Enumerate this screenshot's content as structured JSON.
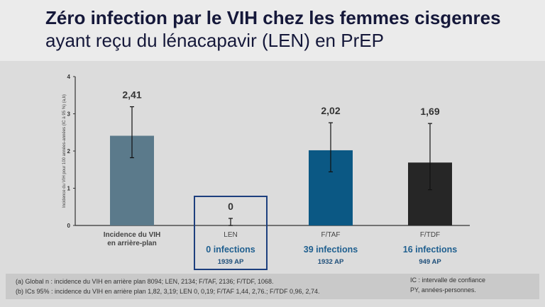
{
  "header": {
    "title_line1": "Zéro infection par le VIH chez les femmes cisgenres",
    "title_line2": "ayant reçu du lénacapavir (LEN) en PrEP"
  },
  "chart_data": {
    "type": "bar",
    "ylabel": "Incidence du VIH pour 100 années-années (IC à 95 %) (a,b)",
    "ylim": [
      0,
      4
    ],
    "yticks": [
      "0",
      "1",
      "2",
      "3",
      "4"
    ],
    "categories": [
      "Incidence du VIH\nen arrière-plan",
      "LEN",
      "F/TAF",
      "F/TDF"
    ],
    "values": [
      2.41,
      0,
      2.02,
      1.69
    ],
    "value_labels": [
      "2,41",
      "0",
      "2,02",
      "1,69"
    ],
    "ci_low": [
      1.82,
      0,
      1.44,
      0.96
    ],
    "ci_high": [
      3.19,
      0.19,
      2.76,
      2.74
    ],
    "colors": [
      "#5b7a8b",
      "#5b7a8b",
      "#0b5884",
      "#262626"
    ],
    "infections": [
      "",
      "0 infections",
      "39 infections",
      "16 infections"
    ],
    "person_years": [
      "",
      "1939 AP",
      "1932 AP",
      "949 AP"
    ],
    "highlighted": "LEN",
    "highlight_color": "#1d3f7e",
    "grid": false
  },
  "footer": {
    "note_a": "(a) Global n : incidence du VIH en arrière plan 8094; LEN, 2134; F/TAF, 2136; F/TDF, 1068.",
    "note_b": "(b) ICs 95% : incidence du VIH en arrière plan 1,82, 3,19; LEN 0, 0,19; F/TAF 1,44, 2,76.; F/TDF 0,96, 2,74.",
    "legend_ic": "IC : intervalle de confiance",
    "legend_py": "PY, années-personnes."
  }
}
